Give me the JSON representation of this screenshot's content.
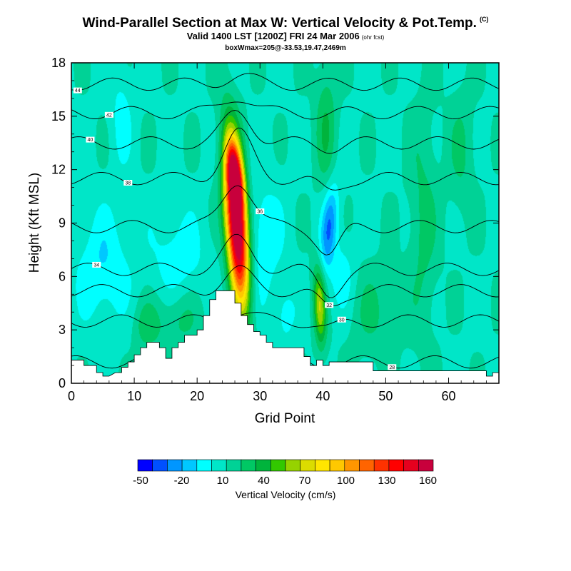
{
  "header": {
    "title": "Wind-Parallel Section at Max W: Vertical Velocity & Pot.Temp.",
    "title_mark": "(C)",
    "subtitle": "Valid 1400 LST [1200Z] FRI 24 Mar 2006",
    "subtitle_note": "(ohr fcst)",
    "stamp": "boxWmax=205@-33.53,19.47,2469m"
  },
  "chart_data": {
    "type": "heatmap",
    "title": "Wind-Parallel Section at Max W: Vertical Velocity & Pot.Temp.",
    "xlabel": "Grid Point",
    "ylabel": "Height (Kft MSL)",
    "xlim": [
      0,
      68
    ],
    "ylim": [
      0,
      18
    ],
    "xticks": [
      0,
      10,
      20,
      30,
      40,
      50,
      60
    ],
    "yticks": [
      0,
      3,
      6,
      9,
      12,
      15,
      18
    ],
    "background_value": 10,
    "terrain": [
      [
        0,
        1.3
      ],
      [
        2,
        1.3
      ],
      [
        2,
        1.0
      ],
      [
        4,
        1.0
      ],
      [
        4,
        0.6
      ],
      [
        5,
        0.6
      ],
      [
        5,
        0.4
      ],
      [
        6,
        0.4
      ],
      [
        6,
        0.4
      ],
      [
        7,
        0.6
      ],
      [
        8,
        0.6
      ],
      [
        8,
        0.9
      ],
      [
        9,
        0.9
      ],
      [
        9,
        1.2
      ],
      [
        10,
        1.2
      ],
      [
        10,
        1.6
      ],
      [
        11,
        1.6
      ],
      [
        11,
        2.0
      ],
      [
        12,
        2.0
      ],
      [
        12,
        2.3
      ],
      [
        14,
        2.3
      ],
      [
        14,
        2.0
      ],
      [
        15,
        2.0
      ],
      [
        15,
        1.4
      ],
      [
        16,
        1.4
      ],
      [
        16,
        2.0
      ],
      [
        17,
        2.0
      ],
      [
        17,
        2.3
      ],
      [
        18,
        2.3
      ],
      [
        18,
        2.7
      ],
      [
        20,
        2.7
      ],
      [
        20,
        3.0
      ],
      [
        21,
        3.0
      ],
      [
        21,
        3.8
      ],
      [
        22,
        3.8
      ],
      [
        22,
        4.7
      ],
      [
        23,
        4.7
      ],
      [
        23,
        5.2
      ],
      [
        26,
        5.2
      ],
      [
        26,
        4.5
      ],
      [
        27,
        4.5
      ],
      [
        27,
        3.8
      ],
      [
        28,
        3.8
      ],
      [
        28,
        3.3
      ],
      [
        29,
        3.3
      ],
      [
        29,
        2.9
      ],
      [
        30,
        2.9
      ],
      [
        30,
        2.7
      ],
      [
        31,
        2.7
      ],
      [
        31,
        2.3
      ],
      [
        32,
        2.3
      ],
      [
        32,
        2.0
      ],
      [
        37,
        2.0
      ],
      [
        37,
        1.5
      ],
      [
        38,
        1.5
      ],
      [
        38,
        1.0
      ],
      [
        39,
        1.0
      ],
      [
        39,
        1.3
      ],
      [
        40,
        1.3
      ],
      [
        40,
        1.0
      ],
      [
        41,
        1.0
      ],
      [
        41,
        1.2
      ],
      [
        48,
        1.2
      ],
      [
        48,
        0.7
      ],
      [
        52,
        0.7
      ],
      [
        52,
        0.7
      ],
      [
        60,
        0.7
      ],
      [
        60,
        0.7
      ],
      [
        66,
        0.7
      ],
      [
        66,
        0.4
      ],
      [
        67,
        0.4
      ],
      [
        67,
        0.6
      ],
      [
        68,
        0.6
      ]
    ],
    "w_features": [
      {
        "x": 26.3,
        "z": 9.0,
        "sx": 1.2,
        "sz": 3.2,
        "tilt": -0.18,
        "peak": 205
      },
      {
        "x": 26.0,
        "z": 11.8,
        "sx": 0.8,
        "sz": 1.2,
        "tilt": -0.3,
        "peak": 80
      },
      {
        "x": 39.5,
        "z": 4.4,
        "sx": 0.7,
        "sz": 1.6,
        "tilt": -0.1,
        "peak": 60
      },
      {
        "x": 12.0,
        "z": 3.2,
        "sx": 1.5,
        "sz": 1.0,
        "tilt": 0,
        "peak": 20
      },
      {
        "x": 17.0,
        "z": 3.6,
        "sx": 2.5,
        "sz": 1.2,
        "tilt": 0,
        "peak": 18
      },
      {
        "x": 40.5,
        "z": 14.5,
        "sx": 1.2,
        "sz": 2.5,
        "tilt": 0,
        "peak": 25
      },
      {
        "x": 56.0,
        "z": 9.0,
        "sx": 1.6,
        "sz": 4.5,
        "tilt": 0,
        "peak": 18
      },
      {
        "x": 62.0,
        "z": 13.0,
        "sx": 1.5,
        "sz": 2.5,
        "tilt": 0,
        "peak": 15
      },
      {
        "x": 48.0,
        "z": 4.0,
        "sx": 3.0,
        "sz": 1.8,
        "tilt": 0,
        "peak": 15
      },
      {
        "x": 41.0,
        "z": 8.8,
        "sx": 0.9,
        "sz": 1.7,
        "tilt": 0.25,
        "peak": -45
      },
      {
        "x": 30.0,
        "z": 8.0,
        "sx": 2.5,
        "sz": 2.5,
        "tilt": 0,
        "peak": -20
      },
      {
        "x": 5.0,
        "z": 6.5,
        "sx": 3.0,
        "sz": 2.2,
        "tilt": 0,
        "peak": -22
      },
      {
        "x": 17.0,
        "z": 7.0,
        "sx": 3.0,
        "sz": 1.8,
        "tilt": 0,
        "peak": -18
      },
      {
        "x": 43.0,
        "z": 6.0,
        "sx": 1.5,
        "sz": 1.5,
        "tilt": 0,
        "peak": -18
      },
      {
        "x": 8.0,
        "z": 15.0,
        "sx": 1.2,
        "sz": 2.0,
        "tilt": 0,
        "peak": -15
      },
      {
        "x": 34.0,
        "z": 3.8,
        "sx": 1.2,
        "sz": 1.2,
        "tilt": 0,
        "peak": -15
      }
    ],
    "isentropes": [
      {
        "level": 28,
        "z": 1.2,
        "label": "28",
        "label_x": 51
      },
      {
        "level": 30,
        "z": 3.5,
        "label": "30",
        "label_x": 43
      },
      {
        "level": 32,
        "z": 5.2,
        "label": "32",
        "label_x": 41
      },
      {
        "level": 34,
        "z": 6.4,
        "label": "34",
        "label_x": 4
      },
      {
        "level": 36,
        "z": 8.8,
        "label": "36",
        "label_x": 30
      },
      {
        "level": 38,
        "z": 11.5,
        "label": "38",
        "label_x": 9
      },
      {
        "level": 40,
        "z": 13.5,
        "label": "40",
        "label_x": 3
      },
      {
        "level": 42,
        "z": 15.2,
        "label": "42",
        "label_x": 6
      },
      {
        "level": 44,
        "z": 16.8,
        "label": "44",
        "label_x": 1
      }
    ],
    "colorbar": {
      "title": "Vertical Velocity (cm/s)",
      "tick_labels": [
        "-50",
        "-20",
        "10",
        "40",
        "70",
        "100",
        "130",
        "160"
      ],
      "colors": [
        "#0000ff",
        "#0050ff",
        "#0096ff",
        "#00c8ff",
        "#00ffff",
        "#00e6c8",
        "#00d296",
        "#00c864",
        "#00b43c",
        "#32c800",
        "#96d200",
        "#dcdc00",
        "#ffe600",
        "#ffc800",
        "#ff9600",
        "#ff6400",
        "#ff3200",
        "#ff0000",
        "#e6001e",
        "#c8003c"
      ]
    }
  }
}
